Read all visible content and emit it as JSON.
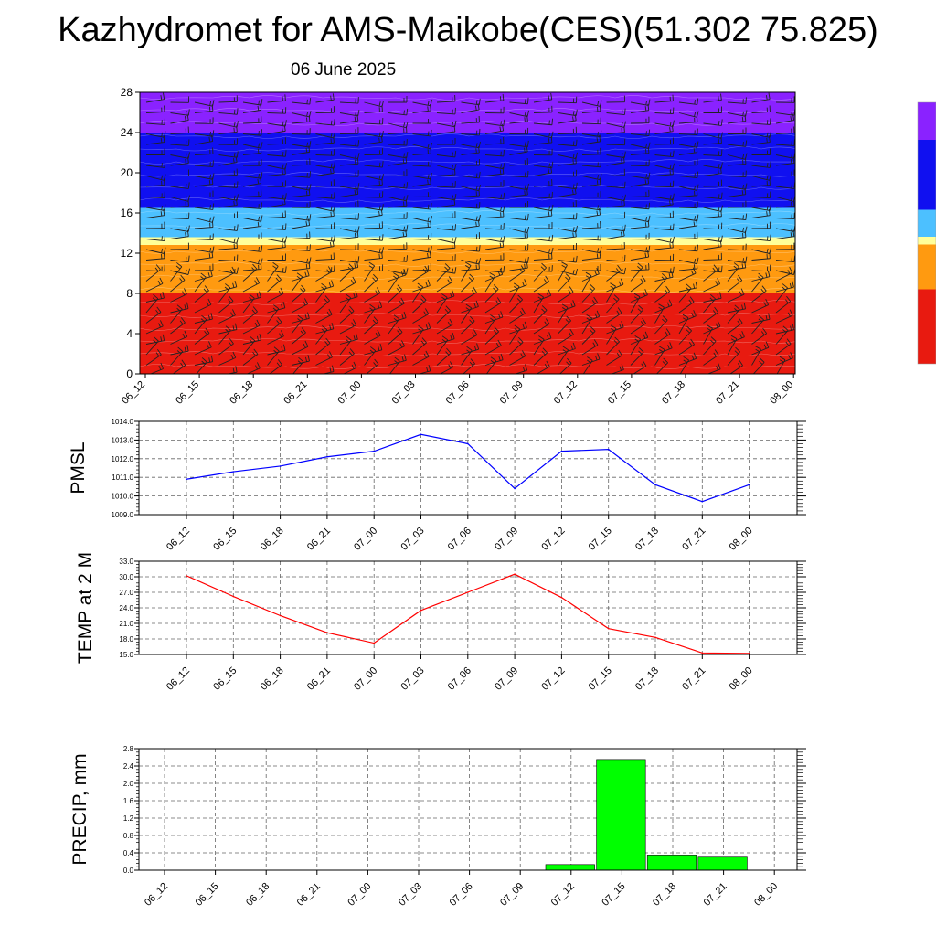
{
  "title": "Kazhydromet for AMS-Maikobe(CES)(51.302 75.825)",
  "date": "06 June 2025",
  "time_labels": [
    "06_12",
    "06_15",
    "06_18",
    "06_21",
    "07_00",
    "07_03",
    "07_06",
    "07_09",
    "07_12",
    "07_15",
    "07_18",
    "07_21",
    "08_00"
  ],
  "chart_data": [
    {
      "type": "heatmap",
      "title": "",
      "xlabel": "",
      "ylabel": "",
      "ylim": [
        0,
        28
      ],
      "y_ticks": [
        0,
        4,
        8,
        12,
        16,
        20,
        24,
        28
      ],
      "x": [
        "06_12",
        "06_15",
        "06_18",
        "06_21",
        "07_00",
        "07_03",
        "07_06",
        "07_09",
        "07_12",
        "07_15",
        "07_18",
        "07_21",
        "08_00"
      ],
      "overlay": "wind-barbs",
      "colorbar": "vertical, right side, no labels",
      "color_bands": [
        {
          "from": 0,
          "to": 8,
          "color": "#e81a10"
        },
        {
          "from": 8,
          "to": 12.8,
          "color": "#ff9a10"
        },
        {
          "from": 12.8,
          "to": 13.6,
          "color": "#ffff9a"
        },
        {
          "from": 13.6,
          "to": 16.5,
          "color": "#4cc0ff"
        },
        {
          "from": 16.5,
          "to": 24,
          "color": "#1010f0"
        },
        {
          "from": 24,
          "to": 28,
          "color": "#8a22ff"
        }
      ],
      "colors": {
        "warm": "#e81a10",
        "orange": "#ff9a10",
        "yellow": "#ffff9a",
        "cyan": "#4cc0ff",
        "blue": "#1010f0",
        "violet": "#8a22ff"
      }
    },
    {
      "type": "line",
      "ylabel": "PMSL",
      "ylim": [
        1009,
        1014
      ],
      "y_ticks": [
        "1009.0",
        "1010.0",
        "1011.0",
        "1012.0",
        "1013.0",
        "1014.0"
      ],
      "grid": true,
      "x": [
        "06_12",
        "06_15",
        "06_18",
        "06_21",
        "07_00",
        "07_03",
        "07_06",
        "07_09",
        "07_12",
        "07_15",
        "07_18",
        "07_21",
        "08_00"
      ],
      "series": [
        {
          "values": [
            1010.9,
            1011.3,
            1011.6,
            1012.1,
            1012.4,
            1013.3,
            1012.8,
            1010.4,
            1012.4,
            1012.5,
            1010.6,
            1009.7,
            1010.6
          ],
          "color": "#0000ff"
        }
      ]
    },
    {
      "type": "line",
      "ylabel": "TEMP at 2 M",
      "ylim": [
        15,
        33
      ],
      "y_ticks": [
        "15.0",
        "18.0",
        "21.0",
        "24.0",
        "27.0",
        "30.0",
        "33.0"
      ],
      "grid": true,
      "x": [
        "06_12",
        "06_15",
        "06_18",
        "06_21",
        "07_00",
        "07_03",
        "07_06",
        "07_09",
        "07_12",
        "07_15",
        "07_18",
        "07_21",
        "08_00"
      ],
      "series": [
        {
          "values": [
            30.2,
            26.2,
            22.5,
            19.2,
            17.2,
            23.5,
            27.0,
            30.5,
            26.0,
            20.0,
            18.3,
            15.3,
            15.2
          ],
          "color": "#ff0000"
        }
      ]
    },
    {
      "type": "bar",
      "ylabel": "PRECIP, mm",
      "ylim": [
        0,
        2.8
      ],
      "y_ticks": [
        "0.0",
        "0.4",
        "0.8",
        "1.2",
        "1.6",
        "2.0",
        "2.4",
        "2.8"
      ],
      "grid": true,
      "categories": [
        "06_12",
        "06_15",
        "06_18",
        "06_21",
        "07_00",
        "07_03",
        "07_06",
        "07_09",
        "07_12",
        "07_15",
        "07_18",
        "07_21",
        "08_00"
      ],
      "values": [
        0,
        0,
        0,
        0,
        0,
        0,
        0,
        0,
        0.13,
        2.55,
        0.35,
        0.3,
        0
      ],
      "bar_color": "#00ff00"
    }
  ]
}
